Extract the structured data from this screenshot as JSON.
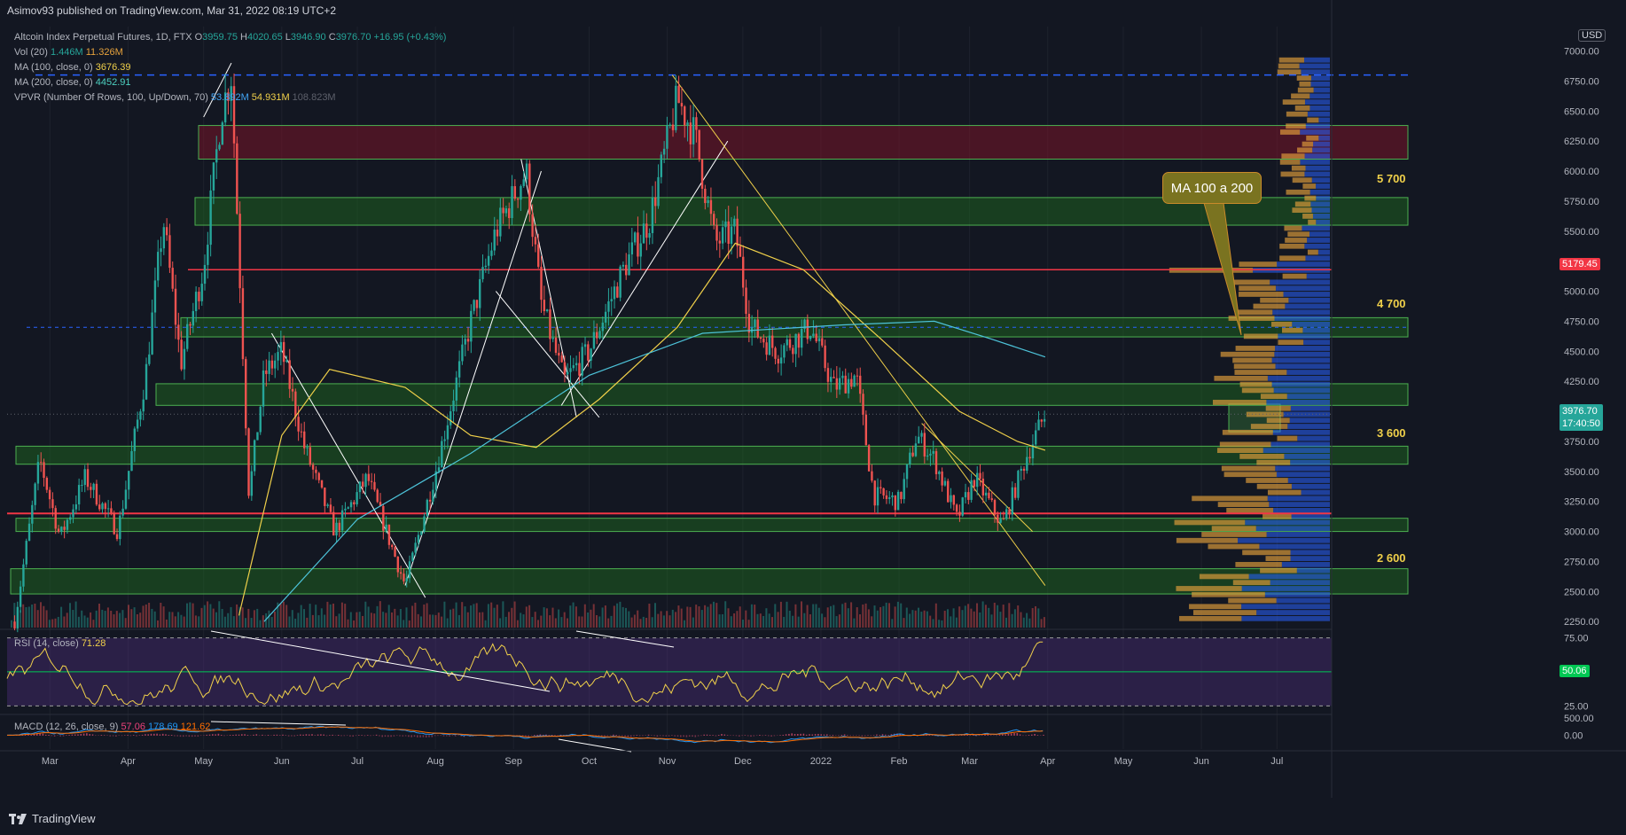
{
  "header": {
    "publisher": "Asimov93 published on TradingView.com, Mar 31, 2022 08:19 UTC+2"
  },
  "legend": {
    "instrument": "Altcoin Index Perpetual Futures, 1D, FTX",
    "ohlc": {
      "o_label": "O",
      "o": "3959.75",
      "h_label": "H",
      "h": "4020.65",
      "l_label": "L",
      "l": "3946.90",
      "c_label": "C",
      "c": "3976.70",
      "change": "+16.95 (+0.43%)"
    },
    "vol": {
      "label": "Vol (20)",
      "v1": "1.446M",
      "v2": "11.326M"
    },
    "ma100": {
      "label": "MA (100, close, 0)",
      "value": "3676.39"
    },
    "ma200": {
      "label": "MA (200, close, 0)",
      "value": "4452.91"
    },
    "vpvr": {
      "label": "VPVR (Number Of Rows, 100, Up/Down, 70)",
      "v_up": "53.892M",
      "v_down": "54.931M",
      "v_total": "108.823M"
    }
  },
  "rsi_legend": {
    "label": "RSI (14, close)",
    "value": "71.28"
  },
  "macd_legend": {
    "label": "MACD (12, 26, close, 9)",
    "hist": "57.06",
    "macd": "178.69",
    "signal": "121.62"
  },
  "currency": "USD",
  "annotation": {
    "callout": "MA 100 a 200"
  },
  "level_labels": [
    "5 700",
    "4 700",
    "3 600",
    "2 600"
  ],
  "price_tags": {
    "red": "5179.45",
    "last_price": "3976.70",
    "countdown": "17:40:50",
    "rsi_value": "50.06"
  },
  "footer": {
    "brand": "TradingView"
  },
  "colors": {
    "background": "#131722",
    "up": "#26a69a",
    "down": "#ef5350",
    "ma100": "#f0d04a",
    "ma200": "#4dc3d9",
    "zone_green": "#1b5e20",
    "zone_red": "#5c1a2a",
    "vpvr_up": "#2962ff",
    "vpvr_down": "#e6a23c",
    "rsi_band": "#3b2a5a",
    "macd_line": "#2196f3",
    "signal_line": "#ff6d00"
  },
  "chart_data": {
    "type": "candlestick",
    "title": "Altcoin Index Perpetual Futures, 1D, FTX",
    "x_ticks": [
      "Mar",
      "Apr",
      "May",
      "Jun",
      "Jul",
      "Aug",
      "Sep",
      "Oct",
      "Nov",
      "Dec",
      "2022",
      "Feb",
      "Mar",
      "Apr",
      "May",
      "Jun",
      "Jul"
    ],
    "y_ticks": [
      "7000.00",
      "6750.00",
      "6500.00",
      "6250.00",
      "6000.00",
      "5750.00",
      "5500.00",
      "5250.00",
      "5000.00",
      "4750.00",
      "4500.00",
      "4250.00",
      "4000.00",
      "3750.00",
      "3500.00",
      "3250.00",
      "3000.00",
      "2750.00",
      "2500.00",
      "2250.00"
    ],
    "ylim": [
      2200,
      7100
    ],
    "price_path": [
      {
        "d": "2021-02-15",
        "p": 2250
      },
      {
        "d": "2021-02-25",
        "p": 3600
      },
      {
        "d": "2021-03-05",
        "p": 2950
      },
      {
        "d": "2021-03-15",
        "p": 3450
      },
      {
        "d": "2021-03-28",
        "p": 3000
      },
      {
        "d": "2021-04-08",
        "p": 4300
      },
      {
        "d": "2021-04-15",
        "p": 5600
      },
      {
        "d": "2021-04-22",
        "p": 4400
      },
      {
        "d": "2021-05-01",
        "p": 5200
      },
      {
        "d": "2021-05-08",
        "p": 6500
      },
      {
        "d": "2021-05-12",
        "p": 6800
      },
      {
        "d": "2021-05-19",
        "p": 3300
      },
      {
        "d": "2021-05-25",
        "p": 4300
      },
      {
        "d": "2021-06-01",
        "p": 4500
      },
      {
        "d": "2021-06-10",
        "p": 3700
      },
      {
        "d": "2021-06-22",
        "p": 3000
      },
      {
        "d": "2021-07-05",
        "p": 3450
      },
      {
        "d": "2021-07-20",
        "p": 2550
      },
      {
        "d": "2021-08-01",
        "p": 3500
      },
      {
        "d": "2021-08-15",
        "p": 4750
      },
      {
        "d": "2021-08-25",
        "p": 5500
      },
      {
        "d": "2021-09-06",
        "p": 6000
      },
      {
        "d": "2021-09-12",
        "p": 4900
      },
      {
        "d": "2021-09-21",
        "p": 4250
      },
      {
        "d": "2021-10-01",
        "p": 4500
      },
      {
        "d": "2021-10-15",
        "p": 5200
      },
      {
        "d": "2021-10-25",
        "p": 5600
      },
      {
        "d": "2021-11-05",
        "p": 6600
      },
      {
        "d": "2021-11-12",
        "p": 6300
      },
      {
        "d": "2021-11-20",
        "p": 5400
      },
      {
        "d": "2021-11-28",
        "p": 5500
      },
      {
        "d": "2021-12-04",
        "p": 4700
      },
      {
        "d": "2021-12-15",
        "p": 4500
      },
      {
        "d": "2021-12-28",
        "p": 4700
      },
      {
        "d": "2022-01-06",
        "p": 4200
      },
      {
        "d": "2022-01-15",
        "p": 4300
      },
      {
        "d": "2022-01-22",
        "p": 3300
      },
      {
        "d": "2022-02-01",
        "p": 3250
      },
      {
        "d": "2022-02-08",
        "p": 3800
      },
      {
        "d": "2022-02-15",
        "p": 3600
      },
      {
        "d": "2022-02-24",
        "p": 3100
      },
      {
        "d": "2022-03-03",
        "p": 3450
      },
      {
        "d": "2022-03-14",
        "p": 3050
      },
      {
        "d": "2022-03-24",
        "p": 3650
      },
      {
        "d": "2022-03-31",
        "p": 3976.7
      }
    ],
    "ma100": [
      {
        "d": "2021-05-15",
        "p": 2300
      },
      {
        "d": "2021-06-01",
        "p": 3800
      },
      {
        "d": "2021-06-20",
        "p": 4350
      },
      {
        "d": "2021-07-20",
        "p": 4200
      },
      {
        "d": "2021-08-15",
        "p": 3800
      },
      {
        "d": "2021-09-10",
        "p": 3700
      },
      {
        "d": "2021-10-05",
        "p": 4100
      },
      {
        "d": "2021-11-05",
        "p": 4700
      },
      {
        "d": "2021-11-28",
        "p": 5400
      },
      {
        "d": "2021-12-25",
        "p": 5180
      },
      {
        "d": "2022-01-25",
        "p": 4600
      },
      {
        "d": "2022-02-25",
        "p": 4000
      },
      {
        "d": "2022-03-20",
        "p": 3750
      },
      {
        "d": "2022-03-31",
        "p": 3676.39
      }
    ],
    "ma200": [
      {
        "d": "2021-05-25",
        "p": 2250
      },
      {
        "d": "2021-07-01",
        "p": 3100
      },
      {
        "d": "2021-08-15",
        "p": 3650
      },
      {
        "d": "2021-10-01",
        "p": 4300
      },
      {
        "d": "2021-11-15",
        "p": 4650
      },
      {
        "d": "2022-01-10",
        "p": 4720
      },
      {
        "d": "2022-02-15",
        "p": 4750
      },
      {
        "d": "2022-03-10",
        "p": 4600
      },
      {
        "d": "2022-03-31",
        "p": 4452.91
      }
    ],
    "zones": [
      {
        "name": "red-zone",
        "from": 6100,
        "to": 6380,
        "color": "red"
      },
      {
        "name": "zone-5700",
        "from": 5550,
        "to": 5780,
        "color": "green"
      },
      {
        "name": "zone-4700",
        "from": 4620,
        "to": 4780,
        "color": "green"
      },
      {
        "name": "zone-4100",
        "from": 4050,
        "to": 4230,
        "color": "green"
      },
      {
        "name": "zone-3600",
        "from": 3560,
        "to": 3710,
        "color": "green"
      },
      {
        "name": "zone-3050",
        "from": 3000,
        "to": 3110,
        "color": "green"
      },
      {
        "name": "zone-2600",
        "from": 2480,
        "to": 2690,
        "color": "green"
      }
    ],
    "horizontal_lines": [
      {
        "name": "red-line-top",
        "price": 5179.45
      },
      {
        "name": "red-line-bottom",
        "price": 3150
      },
      {
        "name": "blue-dashed-top",
        "price": 6800
      }
    ],
    "rsi": {
      "overbought": 75,
      "middle": 50.06,
      "oversold": 25,
      "last": 71.28,
      "ticks": [
        "75.00",
        "25.00"
      ]
    },
    "macd": {
      "ticks": [
        "500.00",
        "0.00"
      ],
      "macd": 178.69,
      "signal": 121.62,
      "hist": 57.06
    }
  }
}
